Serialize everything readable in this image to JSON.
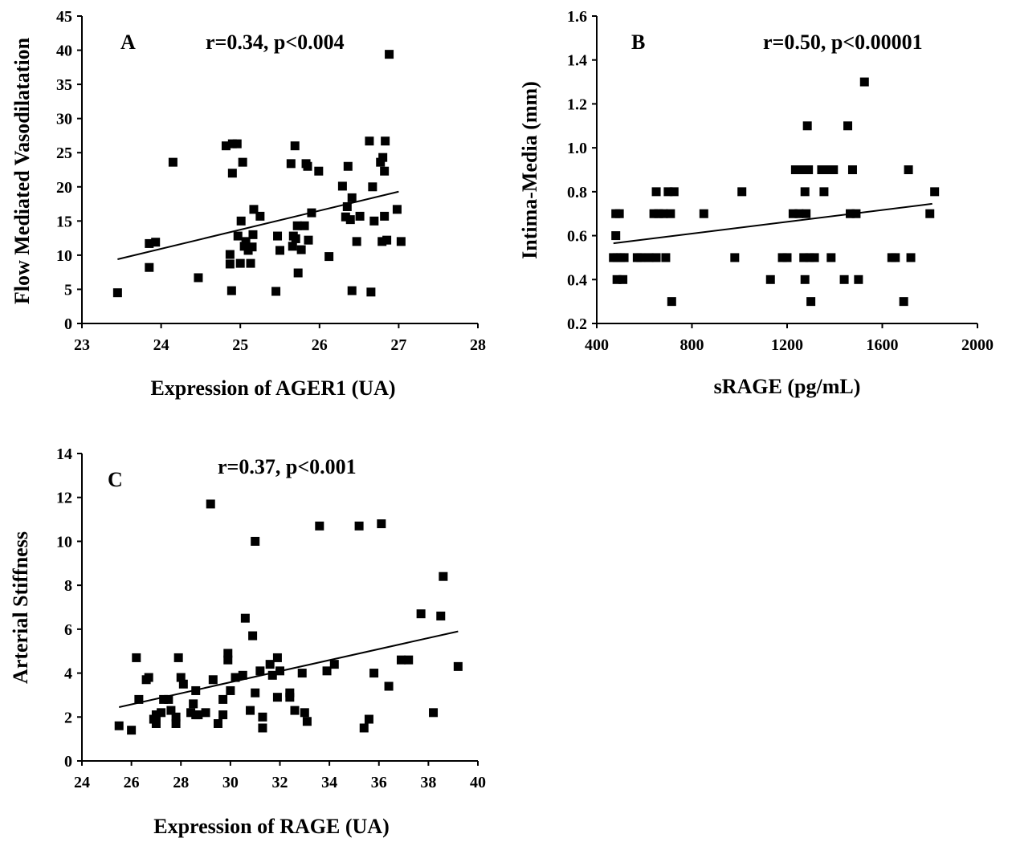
{
  "chart_data": [
    {
      "type": "scatter",
      "panel_label": "A",
      "annotation": "r=0.34, p<0.004",
      "xlabel": "Expression of AGER1 (UA)",
      "ylabel": "Flow Mediated Vasodilatation",
      "xlim": [
        23,
        28
      ],
      "ylim": [
        0,
        45
      ],
      "xticks": [
        "23",
        "24",
        "25",
        "26",
        "27",
        "28"
      ],
      "yticks": [
        "0",
        "5",
        "10",
        "15",
        "20",
        "25",
        "30",
        "35",
        "40",
        "45"
      ],
      "grid": false,
      "marker_color": "#000000",
      "trendline": {
        "x": [
          23.45,
          27.0
        ],
        "y": [
          9.4,
          19.3
        ]
      },
      "points": [
        [
          23.45,
          4.5
        ],
        [
          23.85,
          8.2
        ],
        [
          23.85,
          11.7
        ],
        [
          23.93,
          11.9
        ],
        [
          24.15,
          23.6
        ],
        [
          24.47,
          6.7
        ],
        [
          24.82,
          26.0
        ],
        [
          24.87,
          10.1
        ],
        [
          24.87,
          8.7
        ],
        [
          24.89,
          4.8
        ],
        [
          24.9,
          22.0
        ],
        [
          24.9,
          26.3
        ],
        [
          24.96,
          26.3
        ],
        [
          24.97,
          12.8
        ],
        [
          25.0,
          8.8
        ],
        [
          25.01,
          15.0
        ],
        [
          25.03,
          23.6
        ],
        [
          25.05,
          11.3
        ],
        [
          25.07,
          12.0
        ],
        [
          25.1,
          10.7
        ],
        [
          25.13,
          8.8
        ],
        [
          25.15,
          11.2
        ],
        [
          25.16,
          13.0
        ],
        [
          25.17,
          16.7
        ],
        [
          25.25,
          15.7
        ],
        [
          25.45,
          4.7
        ],
        [
          25.47,
          12.8
        ],
        [
          25.5,
          10.7
        ],
        [
          25.64,
          23.4
        ],
        [
          25.66,
          11.3
        ],
        [
          25.67,
          12.8
        ],
        [
          25.69,
          26.0
        ],
        [
          25.7,
          12.4
        ],
        [
          25.72,
          14.3
        ],
        [
          25.73,
          7.4
        ],
        [
          25.77,
          10.8
        ],
        [
          25.81,
          14.3
        ],
        [
          25.83,
          23.4
        ],
        [
          25.85,
          23.0
        ],
        [
          25.86,
          12.2
        ],
        [
          25.9,
          16.2
        ],
        [
          25.99,
          22.3
        ],
        [
          26.12,
          9.8
        ],
        [
          26.29,
          20.1
        ],
        [
          26.33,
          15.6
        ],
        [
          26.35,
          17.1
        ],
        [
          26.36,
          23.0
        ],
        [
          26.39,
          15.2
        ],
        [
          26.41,
          4.8
        ],
        [
          26.41,
          18.4
        ],
        [
          26.47,
          12.0
        ],
        [
          26.51,
          15.7
        ],
        [
          26.63,
          26.7
        ],
        [
          26.65,
          4.6
        ],
        [
          26.67,
          20.0
        ],
        [
          26.69,
          15.0
        ],
        [
          26.77,
          23.6
        ],
        [
          26.79,
          12.0
        ],
        [
          26.8,
          24.3
        ],
        [
          26.82,
          15.7
        ],
        [
          26.82,
          22.3
        ],
        [
          26.83,
          26.7
        ],
        [
          26.85,
          12.2
        ],
        [
          26.88,
          39.4
        ],
        [
          26.98,
          16.7
        ],
        [
          27.03,
          12.0
        ]
      ]
    },
    {
      "type": "scatter",
      "panel_label": "B",
      "annotation": "r=0.50, p<0.00001",
      "xlabel": "sRAGE (pg/mL)",
      "ylabel": "Intima-Media (mm)",
      "xlim": [
        400,
        2000
      ],
      "ylim": [
        0.2,
        1.6
      ],
      "xticks": [
        "400",
        "800",
        "1200",
        "1600",
        "2000"
      ],
      "yticks": [
        "0.2",
        "0.4",
        "0.6",
        "0.8",
        "1.0",
        "1.2",
        "1.4",
        "1.6"
      ],
      "grid": false,
      "marker_color": "#000000",
      "trendline": {
        "x": [
          470,
          1810
        ],
        "y": [
          0.565,
          0.745
        ]
      },
      "points": [
        [
          470,
          0.5
        ],
        [
          480,
          0.6
        ],
        [
          480,
          0.7
        ],
        [
          485,
          0.5
        ],
        [
          485,
          0.4
        ],
        [
          495,
          0.7
        ],
        [
          500,
          0.5
        ],
        [
          510,
          0.4
        ],
        [
          515,
          0.5
        ],
        [
          570,
          0.5
        ],
        [
          585,
          0.5
        ],
        [
          620,
          0.5
        ],
        [
          640,
          0.7
        ],
        [
          650,
          0.5
        ],
        [
          650,
          0.8
        ],
        [
          660,
          0.7
        ],
        [
          680,
          0.7
        ],
        [
          690,
          0.5
        ],
        [
          700,
          0.8
        ],
        [
          710,
          0.7
        ],
        [
          715,
          0.3
        ],
        [
          725,
          0.8
        ],
        [
          850,
          0.7
        ],
        [
          980,
          0.5
        ],
        [
          1010,
          0.8
        ],
        [
          1130,
          0.4
        ],
        [
          1180,
          0.5
        ],
        [
          1200,
          0.5
        ],
        [
          1225,
          0.7
        ],
        [
          1235,
          0.9
        ],
        [
          1250,
          0.7
        ],
        [
          1265,
          0.9
        ],
        [
          1270,
          0.5
        ],
        [
          1275,
          0.4
        ],
        [
          1275,
          0.8
        ],
        [
          1280,
          0.7
        ],
        [
          1285,
          1.1
        ],
        [
          1290,
          0.9
        ],
        [
          1295,
          0.5
        ],
        [
          1300,
          0.3
        ],
        [
          1315,
          0.5
        ],
        [
          1345,
          0.9
        ],
        [
          1355,
          0.8
        ],
        [
          1370,
          0.9
        ],
        [
          1385,
          0.5
        ],
        [
          1395,
          0.9
        ],
        [
          1440,
          0.4
        ],
        [
          1455,
          1.1
        ],
        [
          1465,
          0.7
        ],
        [
          1475,
          0.9
        ],
        [
          1490,
          0.7
        ],
        [
          1500,
          0.4
        ],
        [
          1525,
          1.3
        ],
        [
          1640,
          0.5
        ],
        [
          1655,
          0.5
        ],
        [
          1690,
          0.3
        ],
        [
          1710,
          0.9
        ],
        [
          1720,
          0.5
        ],
        [
          1800,
          0.7
        ],
        [
          1820,
          0.8
        ]
      ]
    },
    {
      "type": "scatter",
      "panel_label": "C",
      "annotation": "r=0.37, p<0.001",
      "xlabel": "Expression of RAGE (UA)",
      "ylabel": "Arterial Stiffness",
      "xlim": [
        24,
        40
      ],
      "ylim": [
        0,
        14
      ],
      "xticks": [
        "24",
        "26",
        "28",
        "30",
        "32",
        "34",
        "36",
        "38",
        "40"
      ],
      "yticks": [
        "0",
        "2",
        "4",
        "6",
        "8",
        "10",
        "12",
        "14"
      ],
      "grid": false,
      "marker_color": "#000000",
      "trendline": {
        "x": [
          25.5,
          39.2
        ],
        "y": [
          2.45,
          5.9
        ]
      },
      "points": [
        [
          25.5,
          1.6
        ],
        [
          26.0,
          1.4
        ],
        [
          26.2,
          4.7
        ],
        [
          26.3,
          2.8
        ],
        [
          26.6,
          3.7
        ],
        [
          26.7,
          3.8
        ],
        [
          26.9,
          1.9
        ],
        [
          27.0,
          2.1
        ],
        [
          27.0,
          1.7
        ],
        [
          27.2,
          2.2
        ],
        [
          27.3,
          2.8
        ],
        [
          27.5,
          2.8
        ],
        [
          27.6,
          2.3
        ],
        [
          27.8,
          2.0
        ],
        [
          27.8,
          1.7
        ],
        [
          27.9,
          4.7
        ],
        [
          28.0,
          3.8
        ],
        [
          28.1,
          3.5
        ],
        [
          28.4,
          2.2
        ],
        [
          28.5,
          2.6
        ],
        [
          28.6,
          3.2
        ],
        [
          28.6,
          2.1
        ],
        [
          28.7,
          2.1
        ],
        [
          29.0,
          2.2
        ],
        [
          29.2,
          11.7
        ],
        [
          29.3,
          3.7
        ],
        [
          29.5,
          1.7
        ],
        [
          29.7,
          2.1
        ],
        [
          29.7,
          2.8
        ],
        [
          29.9,
          4.9
        ],
        [
          29.9,
          4.6
        ],
        [
          30.0,
          3.2
        ],
        [
          30.2,
          3.8
        ],
        [
          30.5,
          3.9
        ],
        [
          30.6,
          6.5
        ],
        [
          30.8,
          2.3
        ],
        [
          30.9,
          5.7
        ],
        [
          31.0,
          10.0
        ],
        [
          31.0,
          3.1
        ],
        [
          31.2,
          4.1
        ],
        [
          31.3,
          2.0
        ],
        [
          31.3,
          1.5
        ],
        [
          31.6,
          4.4
        ],
        [
          31.7,
          3.9
        ],
        [
          31.9,
          4.7
        ],
        [
          31.9,
          2.9
        ],
        [
          32.0,
          4.1
        ],
        [
          32.4,
          2.9
        ],
        [
          32.4,
          3.1
        ],
        [
          32.6,
          2.3
        ],
        [
          32.9,
          4.0
        ],
        [
          33.0,
          2.2
        ],
        [
          33.1,
          1.8
        ],
        [
          33.6,
          10.7
        ],
        [
          33.9,
          4.1
        ],
        [
          34.2,
          4.4
        ],
        [
          35.2,
          10.7
        ],
        [
          35.4,
          1.5
        ],
        [
          35.6,
          1.9
        ],
        [
          35.8,
          4.0
        ],
        [
          36.1,
          10.8
        ],
        [
          36.4,
          3.4
        ],
        [
          36.9,
          4.6
        ],
        [
          37.2,
          4.6
        ],
        [
          37.7,
          6.7
        ],
        [
          38.2,
          2.2
        ],
        [
          38.5,
          6.6
        ],
        [
          38.6,
          8.4
        ],
        [
          39.2,
          4.3
        ]
      ]
    }
  ]
}
